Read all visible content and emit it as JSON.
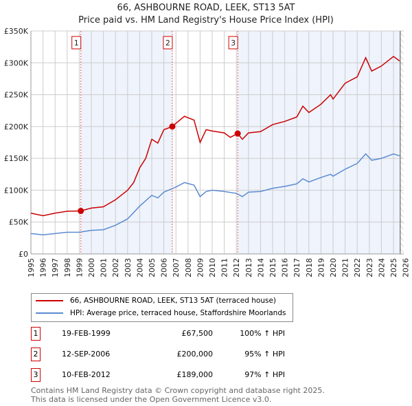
{
  "chart_data": {
    "type": "line",
    "title": "66, ASHBOURNE ROAD, LEEK, ST13 5AT",
    "subtitle": "Price paid vs. HM Land Registry's House Price Index (HPI)",
    "xlim": [
      1995,
      2026
    ],
    "ylim": [
      0,
      350000
    ],
    "yticks": [
      {
        "v": 0,
        "label": "£0"
      },
      {
        "v": 50000,
        "label": "£50K"
      },
      {
        "v": 100000,
        "label": "£100K"
      },
      {
        "v": 150000,
        "label": "£150K"
      },
      {
        "v": 200000,
        "label": "£200K"
      },
      {
        "v": 250000,
        "label": "£250K"
      },
      {
        "v": 300000,
        "label": "£300K"
      },
      {
        "v": 350000,
        "label": "£350K"
      }
    ],
    "xticks": [
      "1995",
      "1996",
      "1997",
      "1998",
      "1999",
      "2000",
      "2001",
      "2002",
      "2003",
      "2004",
      "2005",
      "2006",
      "2007",
      "2008",
      "2009",
      "2010",
      "2011",
      "2012",
      "2013",
      "2014",
      "2015",
      "2016",
      "2017",
      "2018",
      "2019",
      "2020",
      "2021",
      "2022",
      "2023",
      "2024",
      "2025",
      "2026"
    ],
    "series": [
      {
        "name": "66, ASHBOURNE ROAD, LEEK, ST13 5AT (terraced house)",
        "color": "#cc0000",
        "x": [
          1995,
          1996,
          1997,
          1998,
          1999.13,
          2000,
          2001,
          2002,
          2003,
          2003.5,
          2004,
          2004.5,
          2005,
          2005.5,
          2006,
          2006.7,
          2007,
          2007.7,
          2008.5,
          2009,
          2009.5,
          2010,
          2011,
          2011.5,
          2012.1,
          2012.5,
          2013,
          2014,
          2015,
          2016,
          2017,
          2017.5,
          2018,
          2019,
          2019.8,
          2020,
          2021,
          2022,
          2022.7,
          2023.2,
          2024,
          2025,
          2025.5
        ],
        "y": [
          64000,
          60000,
          64000,
          67000,
          67500,
          72000,
          74000,
          85000,
          100000,
          112000,
          135000,
          150000,
          180000,
          174000,
          195000,
          200000,
          205000,
          216000,
          210000,
          175000,
          195000,
          193000,
          190000,
          183000,
          189000,
          180000,
          190000,
          192000,
          203000,
          208000,
          215000,
          232000,
          222000,
          235000,
          250000,
          243000,
          268000,
          278000,
          308000,
          287000,
          295000,
          310000,
          303000
        ]
      },
      {
        "name": "HPI: Average price, terraced house, Staffordshire Moorlands",
        "color": "#5b8bd0",
        "x": [
          1995,
          1996,
          1997,
          1998,
          1999,
          2000,
          2001,
          2002,
          2003,
          2004,
          2005,
          2005.5,
          2006,
          2007,
          2007.7,
          2008.5,
          2009,
          2009.5,
          2010,
          2011,
          2012,
          2012.5,
          2013,
          2014,
          2015,
          2016,
          2017,
          2017.5,
          2018,
          2019,
          2019.8,
          2020,
          2021,
          2022,
          2022.7,
          2023.2,
          2024,
          2025,
          2025.5
        ],
        "y": [
          32000,
          30000,
          32000,
          34000,
          34000,
          37000,
          38000,
          45000,
          55000,
          75000,
          92000,
          88000,
          97000,
          105000,
          112000,
          108000,
          90000,
          98000,
          100000,
          98000,
          95000,
          90000,
          97000,
          98000,
          103000,
          106000,
          110000,
          118000,
          113000,
          120000,
          125000,
          122000,
          133000,
          142000,
          157000,
          147000,
          150000,
          157000,
          154000
        ]
      }
    ],
    "sales": [
      {
        "n": "1",
        "x": 1999.13,
        "date": "19-FEB-1999",
        "price": "£67,500",
        "value": 67500,
        "hpi": "100% ↑ HPI"
      },
      {
        "n": "2",
        "x": 2006.7,
        "date": "12-SEP-2006",
        "price": "£200,000",
        "value": 200000,
        "hpi": "95% ↑ HPI"
      },
      {
        "n": "3",
        "x": 2012.11,
        "date": "10-FEB-2012",
        "price": "£189,000",
        "value": 189000,
        "hpi": "97% ↑ HPI"
      }
    ],
    "hatch_from": 2025.5,
    "legend_position": "below"
  },
  "footer": {
    "line1": "Contains HM Land Registry data © Crown copyright and database right 2025.",
    "line2": "This data is licensed under the Open Government Licence v3.0."
  }
}
